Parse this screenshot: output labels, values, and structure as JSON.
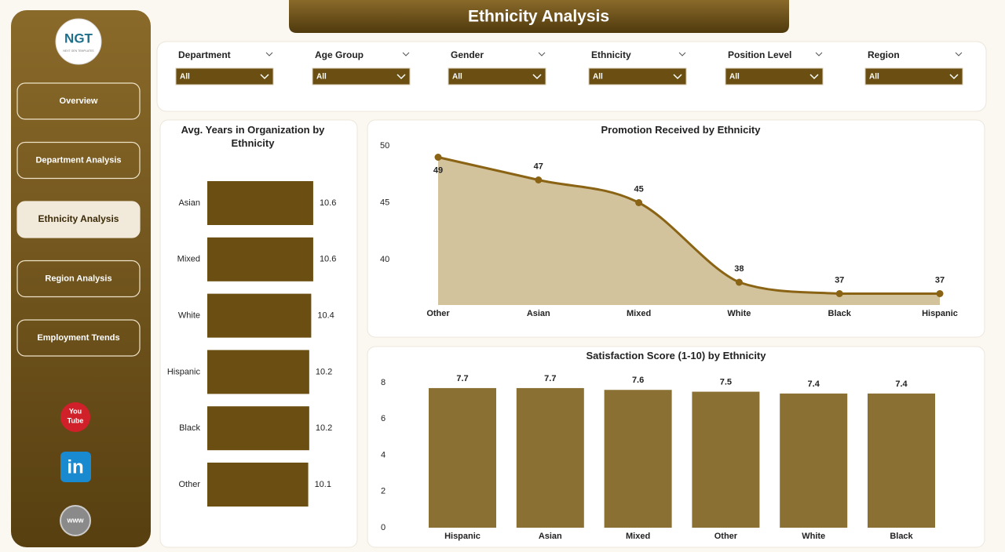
{
  "header": {
    "title": "Ethnicity Analysis"
  },
  "sidebar": {
    "logo": "NGT",
    "logo_sub": "NEXT GEN TEMPLATES",
    "nav": [
      "Overview",
      "Department Analysis",
      "Ethnicity Analysis",
      "Region Analysis",
      "Employment Trends"
    ],
    "active": 2,
    "icons": {
      "youtube": [
        "You",
        "Tube"
      ],
      "linkedin": "in",
      "web": "www"
    }
  },
  "filters": [
    {
      "label": "Department",
      "value": "All"
    },
    {
      "label": "Age Group",
      "value": "All"
    },
    {
      "label": "Gender",
      "value": "All"
    },
    {
      "label": "Ethnicity",
      "value": "All"
    },
    {
      "label": "Position Level",
      "value": "All"
    },
    {
      "label": "Region",
      "value": "All"
    }
  ],
  "chart_data": [
    {
      "type": "hbar",
      "title": "Avg. Years in Organization by Ethnicity",
      "categories": [
        "Asian",
        "Mixed",
        "White",
        "Hispanic",
        "Black",
        "Other"
      ],
      "values": [
        10.6,
        10.6,
        10.4,
        10.2,
        10.2,
        10.1
      ],
      "color": "#6b4f12"
    },
    {
      "type": "area",
      "title": "Promotion Received by Ethnicity",
      "categories": [
        "Other",
        "Asian",
        "Mixed",
        "White",
        "Black",
        "Hispanic"
      ],
      "values": [
        49,
        47,
        45,
        38,
        37,
        37
      ],
      "ylim": [
        36,
        50
      ],
      "yticks": [
        40,
        45,
        50
      ],
      "color": "#8a6414",
      "fill": "#d2c39c"
    },
    {
      "type": "bar",
      "title": "Satisfaction Score (1-10) by Ethnicity",
      "categories": [
        "Hispanic",
        "Asian",
        "Mixed",
        "Other",
        "White",
        "Black"
      ],
      "values": [
        7.7,
        7.7,
        7.6,
        7.5,
        7.4,
        7.4
      ],
      "ylim": [
        0,
        8
      ],
      "yticks": [
        0,
        2,
        4,
        6,
        8
      ],
      "color": "#8a7033"
    }
  ]
}
